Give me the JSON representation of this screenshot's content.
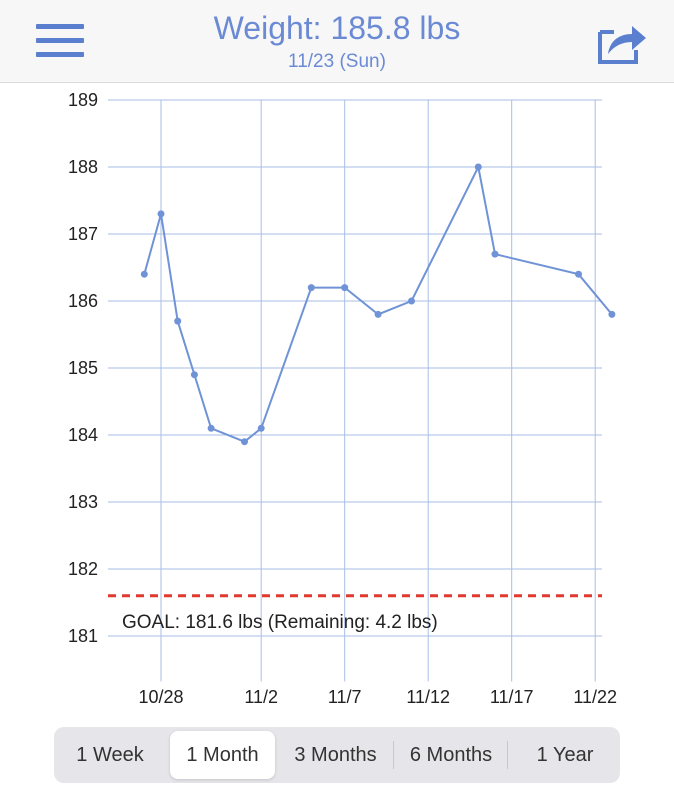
{
  "header": {
    "title": "Weight: 185.8 lbs",
    "subtitle": "11/23 (Sun)",
    "menu_icon": "hamburger-menu-icon",
    "share_icon": "share-icon"
  },
  "colors": {
    "accent": "#6b8ad4",
    "line": "#6f93d6",
    "goal": "#e03a2e",
    "grid": "#a9bde6"
  },
  "chart_data": {
    "type": "line",
    "y_ticks": [
      189,
      188,
      187,
      186,
      185,
      184,
      183,
      182,
      181
    ],
    "ylim": [
      180.5,
      189
    ],
    "x_ticks": [
      "10/28",
      "11/2",
      "11/7",
      "11/12",
      "11/17",
      "11/22"
    ],
    "grid": true,
    "series": [
      {
        "dates": [
          "10/27",
          "10/28",
          "10/29",
          "10/30",
          "10/31",
          "11/1",
          "11/2",
          "11/5",
          "11/7",
          "11/9",
          "11/11",
          "11/15",
          "11/16",
          "11/21",
          "11/23"
        ],
        "values": [
          186.4,
          187.3,
          185.7,
          184.9,
          184.1,
          183.9,
          184.1,
          186.2,
          186.2,
          185.8,
          186.0,
          188.0,
          186.7,
          186.4,
          185.8
        ]
      }
    ],
    "goal": {
      "value": 181.6,
      "label": "GOAL: 181.6 lbs (Remaining: 4.2 lbs)"
    }
  },
  "range_selector": {
    "options": [
      "1 Week",
      "1 Month",
      "3 Months",
      "6 Months",
      "1 Year"
    ],
    "selected": "1 Month"
  }
}
